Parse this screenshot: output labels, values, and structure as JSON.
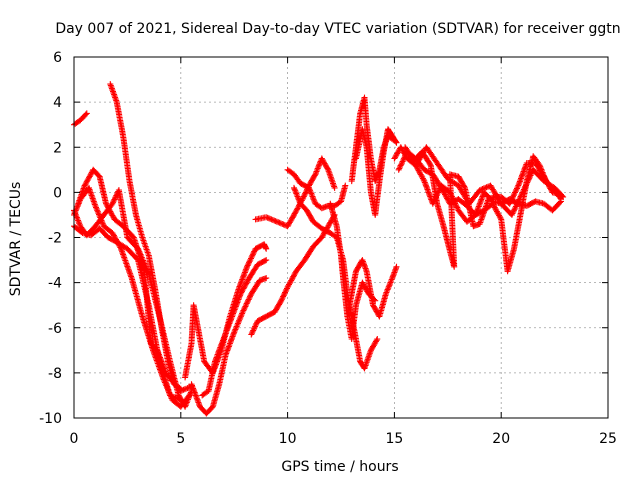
{
  "chart_data": {
    "type": "scatter",
    "title": "Day 007 of 2021, Sidereal Day-to-day VTEC variation (SDTVAR) for receiver ggtn",
    "xlabel": "GPS time / hours",
    "ylabel": "SDTVAR / TECUs",
    "xlim": [
      0,
      25
    ],
    "ylim": [
      -10,
      6
    ],
    "xticks": [
      0,
      5,
      10,
      15,
      20,
      25
    ],
    "yticks": [
      -10,
      -8,
      -6,
      -4,
      -2,
      0,
      2,
      4,
      6
    ],
    "grid": true,
    "marker": "+",
    "color": "#ff0000",
    "series": [
      {
        "points": [
          [
            0,
            3.0
          ],
          [
            0.3,
            3.2
          ],
          [
            0.6,
            3.5
          ]
        ]
      },
      {
        "points": [
          [
            0,
            -0.8
          ],
          [
            0.3,
            -1.5
          ],
          [
            0.6,
            -1.9
          ],
          [
            1.0,
            -1.5
          ],
          [
            1.4,
            -1.0
          ],
          [
            1.8,
            -0.5
          ],
          [
            2.1,
            0.1
          ],
          [
            2.5,
            -2.0
          ],
          [
            3.0,
            -2.5
          ],
          [
            3.5,
            -3.6
          ],
          [
            4.0,
            -5.5
          ],
          [
            4.5,
            -7.5
          ],
          [
            4.9,
            -9.0
          ],
          [
            5.2,
            -9.5
          ],
          [
            5.5,
            -8.8
          ]
        ]
      },
      {
        "points": [
          [
            0,
            -1.0
          ],
          [
            0.3,
            -0.3
          ],
          [
            0.7,
            0.2
          ],
          [
            1.0,
            -0.6
          ],
          [
            1.4,
            -1.5
          ],
          [
            1.8,
            -1.8
          ],
          [
            2.2,
            -2.5
          ],
          [
            2.7,
            -3.8
          ],
          [
            3.2,
            -5.5
          ],
          [
            3.7,
            -7.0
          ],
          [
            4.2,
            -8.3
          ],
          [
            4.6,
            -9.2
          ],
          [
            5.0,
            -9.5
          ],
          [
            5.4,
            -9.0
          ]
        ]
      },
      {
        "points": [
          [
            0.2,
            -0.5
          ],
          [
            0.5,
            0.3
          ],
          [
            0.9,
            1.0
          ],
          [
            1.2,
            0.7
          ],
          [
            1.5,
            -0.5
          ],
          [
            1.9,
            -1.2
          ],
          [
            2.3,
            -1.5
          ],
          [
            2.8,
            -2.0
          ],
          [
            3.3,
            -3.5
          ],
          [
            3.6,
            -6.7
          ],
          [
            3.9,
            -7.0
          ],
          [
            4.3,
            -8.0
          ],
          [
            4.7,
            -8.5
          ],
          [
            5.0,
            -8.7
          ]
        ]
      },
      {
        "points": [
          [
            0,
            -1.5
          ],
          [
            0.4,
            -1.8
          ],
          [
            0.8,
            -1.9
          ],
          [
            1.2,
            -1.6
          ],
          [
            1.6,
            -2.0
          ],
          [
            2.0,
            -2.2
          ],
          [
            2.5,
            -2.5
          ],
          [
            3.0,
            -3.0
          ],
          [
            3.5,
            -5.0
          ],
          [
            4.0,
            -7.5
          ],
          [
            4.5,
            -9.0
          ],
          [
            5.0,
            -9.2
          ]
        ]
      },
      {
        "points": [
          [
            1.7,
            4.8
          ],
          [
            2.0,
            4.0
          ],
          [
            2.3,
            2.5
          ],
          [
            2.6,
            0.5
          ],
          [
            2.9,
            -1.0
          ],
          [
            3.2,
            -2.0
          ],
          [
            3.5,
            -2.8
          ],
          [
            3.8,
            -4.3
          ],
          [
            4.1,
            -6.0
          ],
          [
            4.4,
            -7.5
          ],
          [
            4.7,
            -8.5
          ],
          [
            5.0,
            -8.8
          ],
          [
            5.5,
            -8.6
          ]
        ]
      },
      {
        "points": [
          [
            5.5,
            -8.5
          ],
          [
            5.9,
            -9.5
          ],
          [
            6.2,
            -9.8
          ],
          [
            6.5,
            -9.5
          ],
          [
            6.8,
            -8.5
          ],
          [
            7.1,
            -7.2
          ],
          [
            7.5,
            -6.2
          ],
          [
            7.9,
            -5.3
          ],
          [
            8.3,
            -4.5
          ],
          [
            8.7,
            -3.9
          ],
          [
            9.0,
            -3.8
          ]
        ]
      },
      {
        "points": [
          [
            5.2,
            -8.2
          ],
          [
            5.5,
            -6.7
          ],
          [
            5.6,
            -5.0
          ],
          [
            5.8,
            -6.0
          ],
          [
            6.1,
            -7.5
          ],
          [
            6.5,
            -8.0
          ],
          [
            6.9,
            -7.0
          ],
          [
            7.3,
            -5.5
          ],
          [
            7.7,
            -4.3
          ],
          [
            8.1,
            -3.3
          ],
          [
            8.5,
            -2.5
          ],
          [
            8.9,
            -2.3
          ],
          [
            9.0,
            -2.5
          ]
        ]
      },
      {
        "points": [
          [
            6.0,
            -9.0
          ],
          [
            6.3,
            -8.8
          ],
          [
            6.6,
            -7.5
          ],
          [
            7.0,
            -6.5
          ],
          [
            7.4,
            -5.5
          ],
          [
            7.8,
            -4.5
          ],
          [
            8.2,
            -3.8
          ],
          [
            8.6,
            -3.2
          ],
          [
            9.0,
            -3.0
          ]
        ]
      },
      {
        "points": [
          [
            8.3,
            -6.3
          ],
          [
            8.6,
            -5.7
          ],
          [
            9.0,
            -5.5
          ],
          [
            9.4,
            -5.3
          ],
          [
            9.7,
            -4.8
          ],
          [
            10.0,
            -4.2
          ],
          [
            10.4,
            -3.5
          ],
          [
            10.8,
            -3.0
          ],
          [
            11.2,
            -2.4
          ],
          [
            11.6,
            -2.0
          ],
          [
            11.9,
            -1.5
          ],
          [
            12.2,
            -1.0
          ]
        ]
      },
      {
        "points": [
          [
            8.5,
            -1.2
          ],
          [
            9.0,
            -1.1
          ],
          [
            9.5,
            -1.3
          ],
          [
            10.0,
            -1.5
          ],
          [
            10.3,
            -1.0
          ],
          [
            10.7,
            -0.3
          ],
          [
            11.0,
            0.3
          ],
          [
            11.3,
            0.8
          ],
          [
            11.6,
            1.5
          ],
          [
            11.9,
            1.0
          ],
          [
            12.2,
            0.2
          ]
        ]
      },
      {
        "points": [
          [
            10.0,
            1.0
          ],
          [
            10.3,
            0.8
          ],
          [
            10.6,
            0.4
          ],
          [
            11.0,
            0.2
          ],
          [
            11.3,
            -0.5
          ],
          [
            11.6,
            -0.7
          ],
          [
            11.9,
            -0.6
          ],
          [
            12.2,
            -0.6
          ],
          [
            12.5,
            -0.4
          ],
          [
            12.7,
            0.3
          ]
        ]
      },
      {
        "points": [
          [
            10.3,
            0.2
          ],
          [
            10.6,
            -0.5
          ],
          [
            10.9,
            -0.8
          ],
          [
            11.2,
            -1.3
          ],
          [
            11.6,
            -1.6
          ],
          [
            12.0,
            -1.8
          ],
          [
            12.3,
            -2.0
          ],
          [
            12.6,
            -3.0
          ],
          [
            12.8,
            -4.5
          ],
          [
            13.1,
            -6.0
          ],
          [
            13.4,
            -7.5
          ],
          [
            13.6,
            -7.8
          ],
          [
            13.9,
            -7.0
          ],
          [
            14.2,
            -6.5
          ]
        ]
      },
      {
        "points": [
          [
            12.0,
            -0.5
          ],
          [
            12.3,
            -1.5
          ],
          [
            12.5,
            -2.8
          ],
          [
            12.6,
            -3.8
          ],
          [
            12.8,
            -5.5
          ],
          [
            13.0,
            -6.5
          ],
          [
            13.2,
            -5.0
          ],
          [
            13.5,
            -4.0
          ],
          [
            13.8,
            -4.5
          ],
          [
            14.1,
            -4.8
          ]
        ]
      },
      {
        "points": [
          [
            12.8,
            -5.5
          ],
          [
            13.0,
            -4.5
          ],
          [
            13.2,
            -3.5
          ],
          [
            13.5,
            -3.0
          ],
          [
            13.7,
            -3.5
          ],
          [
            14.0,
            -5.0
          ],
          [
            14.3,
            -5.5
          ],
          [
            14.6,
            -4.5
          ],
          [
            14.9,
            -3.8
          ],
          [
            15.1,
            -3.3
          ]
        ]
      },
      {
        "points": [
          [
            13.0,
            0.5
          ],
          [
            13.2,
            2.0
          ],
          [
            13.4,
            3.5
          ],
          [
            13.6,
            4.2
          ],
          [
            13.7,
            3.0
          ],
          [
            13.9,
            1.5
          ],
          [
            14.1,
            0.5
          ],
          [
            14.3,
            1.0
          ],
          [
            14.5,
            2.0
          ],
          [
            14.7,
            2.5
          ],
          [
            15.0,
            2.3
          ]
        ]
      },
      {
        "points": [
          [
            13.2,
            1.5
          ],
          [
            13.5,
            2.8
          ],
          [
            13.7,
            2.0
          ],
          [
            13.9,
            0.0
          ],
          [
            14.1,
            -1.0
          ],
          [
            14.3,
            0.5
          ],
          [
            14.5,
            1.8
          ],
          [
            14.7,
            2.8
          ],
          [
            14.9,
            2.5
          ],
          [
            15.1,
            2.2
          ]
        ]
      },
      {
        "points": [
          [
            15.0,
            1.5
          ],
          [
            15.3,
            2.0
          ],
          [
            15.6,
            1.5
          ],
          [
            16.0,
            1.2
          ],
          [
            16.4,
            0.5
          ],
          [
            16.8,
            -0.5
          ],
          [
            17.2,
            0.3
          ],
          [
            17.6,
            0.0
          ],
          [
            18.0,
            -0.8
          ],
          [
            18.4,
            -1.3
          ],
          [
            18.8,
            -1.0
          ],
          [
            19.2,
            0.0
          ],
          [
            19.6,
            -0.4
          ],
          [
            20.0,
            -0.5
          ],
          [
            20.4,
            -0.3
          ],
          [
            20.8,
            -0.5
          ],
          [
            21.2,
            -0.6
          ],
          [
            21.6,
            -0.4
          ],
          [
            22.0,
            -0.5
          ],
          [
            22.4,
            -0.8
          ],
          [
            22.8,
            -0.4
          ]
        ]
      },
      {
        "points": [
          [
            15.2,
            1.0
          ],
          [
            15.6,
            1.8
          ],
          [
            16.0,
            1.5
          ],
          [
            16.4,
            1.0
          ],
          [
            16.8,
            0.8
          ],
          [
            17.2,
            0.2
          ],
          [
            17.6,
            -0.5
          ],
          [
            18.0,
            -0.3
          ],
          [
            18.4,
            -0.6
          ],
          [
            18.8,
            -1.0
          ],
          [
            19.2,
            -0.8
          ],
          [
            19.6,
            -0.5
          ],
          [
            20.0,
            -1.2
          ],
          [
            20.3,
            -3.5
          ],
          [
            20.6,
            -2.5
          ],
          [
            20.9,
            -1.0
          ],
          [
            21.2,
            0.5
          ],
          [
            21.5,
            1.6
          ],
          [
            21.8,
            1.2
          ],
          [
            22.1,
            0.5
          ],
          [
            22.4,
            0.2
          ],
          [
            22.8,
            -0.3
          ]
        ]
      },
      {
        "points": [
          [
            15.5,
            2.0
          ],
          [
            15.9,
            1.4
          ],
          [
            16.3,
            1.8
          ],
          [
            16.7,
            1.2
          ],
          [
            17.0,
            -0.5
          ],
          [
            17.3,
            -1.5
          ],
          [
            17.6,
            -2.6
          ],
          [
            17.8,
            -3.3
          ],
          [
            17.6,
            0.8
          ],
          [
            18.0,
            0.7
          ],
          [
            18.3,
            0.2
          ],
          [
            18.7,
            -1.5
          ],
          [
            19.0,
            -1.4
          ],
          [
            19.4,
            -0.3
          ],
          [
            19.7,
            -0.2
          ],
          [
            20.0,
            -0.2
          ],
          [
            20.4,
            -0.5
          ],
          [
            20.8,
            0.3
          ],
          [
            21.2,
            1.3
          ],
          [
            21.6,
            1.3
          ],
          [
            22.0,
            0.7
          ],
          [
            22.4,
            0.0
          ],
          [
            22.8,
            -0.1
          ]
        ]
      },
      {
        "points": [
          [
            16.0,
            1.2
          ],
          [
            16.5,
            2.0
          ],
          [
            17.0,
            1.3
          ],
          [
            17.5,
            0.6
          ],
          [
            18.0,
            0.3
          ],
          [
            18.5,
            -0.5
          ],
          [
            19.0,
            0.1
          ],
          [
            19.5,
            0.3
          ],
          [
            20.0,
            -0.5
          ],
          [
            20.5,
            -1.0
          ],
          [
            21.0,
            0.0
          ],
          [
            21.5,
            1.0
          ],
          [
            22.0,
            0.5
          ],
          [
            22.5,
            0.2
          ],
          [
            22.9,
            -0.2
          ]
        ]
      }
    ]
  }
}
